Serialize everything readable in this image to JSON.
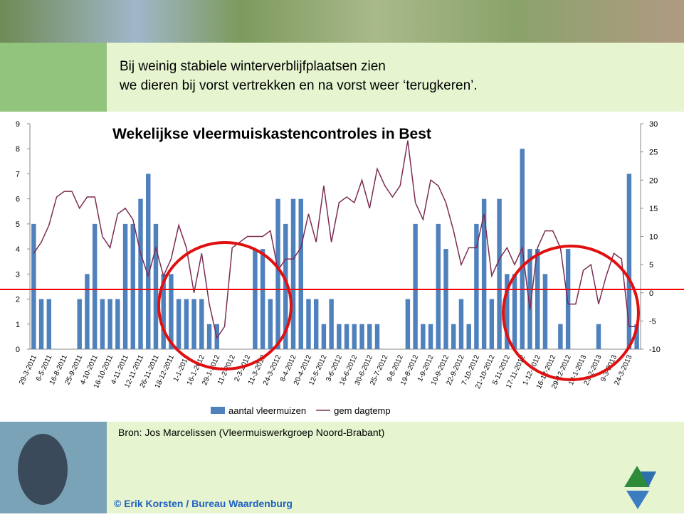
{
  "heading": [
    "Bij weinig stabiele winterverblijfplaatsen zien",
    "we dieren bij vorst vertrekken en na vorst weer ‘terugkeren’."
  ],
  "source": "Bron: Jos Marcelissen (Vleermuiswerkgroep Noord-Brabant)",
  "copyright": "© Erik Korsten / Bureau Waardenburg",
  "chart_data": {
    "type": "bar",
    "title": "Wekelijkse vleermuiskastencontroles in Best",
    "categories": [
      "29-3-2011",
      null,
      "6-5-2011",
      null,
      "16-8-2011",
      null,
      "25-9-2011",
      null,
      "4-10-2011",
      null,
      "16-10-2011",
      null,
      "4-11-2011",
      null,
      "12-11-2011",
      null,
      "26-11-2011",
      null,
      "18-12-2011",
      null,
      "1-1-2012",
      null,
      "16-1-2012",
      null,
      "29-1-2012",
      null,
      "11-2-2012",
      null,
      "2-3-2012",
      null,
      "11-3-2012",
      null,
      "24-3-2012",
      null,
      "8-4-2012",
      null,
      "20-4-2012",
      null,
      "12-5-2012",
      null,
      "3-6-2012",
      null,
      "16-6-2012",
      null,
      "30-6-2012",
      null,
      "25-7-2012",
      null,
      "9-8-2012",
      null,
      "19-8-2012",
      null,
      "1-9-2012",
      null,
      "10-9-2012",
      null,
      "22-9-2012",
      null,
      "7-10-2012",
      null,
      "21-10-2012",
      null,
      "5-11-2012",
      null,
      "17-11-2012",
      null,
      "1-12-2012",
      null,
      "16-12-2012",
      null,
      "29-12-2012",
      null,
      "13-1-2013",
      null,
      "23-2-2013",
      null,
      "9-3-2013",
      null,
      "24-3-2013",
      null
    ],
    "series": [
      {
        "name": "aantal vleermuizen",
        "type": "bar",
        "color": "#4f81bd",
        "values": [
          5,
          2,
          2,
          0,
          0,
          0,
          2,
          3,
          5,
          2,
          2,
          2,
          5,
          5,
          6,
          7,
          5,
          3,
          3,
          2,
          2,
          2,
          2,
          1,
          1,
          0,
          0,
          0,
          0,
          4,
          4,
          2,
          6,
          5,
          6,
          6,
          2,
          2,
          1,
          2,
          1,
          1,
          1,
          1,
          1,
          1,
          0,
          0,
          0,
          2,
          5,
          1,
          1,
          5,
          4,
          1,
          2,
          1,
          5,
          6,
          2,
          6,
          3,
          3,
          8,
          4,
          4,
          3,
          0,
          1,
          4,
          0,
          0,
          0,
          1,
          0,
          0,
          0,
          7,
          1
        ]
      },
      {
        "name": "gem dagtemp",
        "type": "line",
        "axis": "y2",
        "color": "#7b2c52",
        "values": [
          7,
          9,
          12,
          17,
          18,
          18,
          15,
          17,
          17,
          10,
          8,
          14,
          15,
          13,
          7,
          3,
          8,
          3,
          6,
          12,
          8,
          0,
          7,
          -2,
          -8,
          -6,
          8,
          9,
          10,
          10,
          10,
          11,
          4,
          6,
          6,
          8,
          14,
          9,
          19,
          9,
          16,
          17,
          16,
          20,
          15,
          22,
          19,
          17,
          19,
          27,
          16,
          13,
          20,
          19,
          16,
          11,
          5,
          8,
          8,
          14,
          3,
          6,
          8,
          5,
          8,
          -3,
          8,
          11,
          11,
          8,
          -2,
          -2,
          4,
          5,
          -2,
          3,
          7,
          6,
          -6,
          -6
        ]
      }
    ],
    "ylim": [
      0,
      9
    ],
    "yticks": [
      0,
      1,
      2,
      3,
      4,
      5,
      6,
      7,
      8,
      9
    ],
    "y2lim": [
      -10,
      30
    ],
    "y2ticks": [
      -10,
      -5,
      0,
      5,
      10,
      15,
      20,
      25,
      30
    ]
  }
}
